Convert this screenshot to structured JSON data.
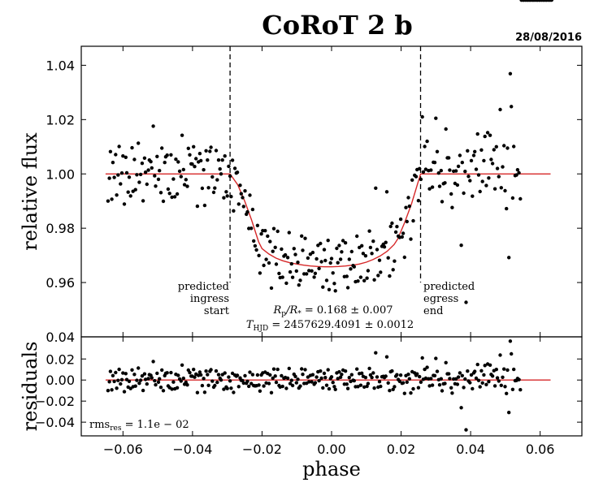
{
  "chart_data": {
    "type": "scatter",
    "title": "CoRoT 2 b",
    "date": "28/08/2016",
    "xlabel": "phase",
    "xlim": [
      -0.072,
      0.072
    ],
    "x_ticks": [
      -0.06,
      -0.04,
      -0.02,
      0.0,
      0.02,
      0.04,
      0.06
    ],
    "x_tick_labels": [
      "−0.06",
      "−0.04",
      "−0.02",
      "0.00",
      "0.02",
      "0.04",
      "0.06"
    ],
    "main_panel": {
      "ylabel": "relative flux",
      "ylim": [
        0.94,
        1.047
      ],
      "y_ticks": [
        0.96,
        0.98,
        1.0,
        1.02,
        1.04
      ],
      "y_tick_labels": [
        "0.96",
        "0.98",
        "1.00",
        "1.02",
        "1.04"
      ],
      "bottom_label": "0.04",
      "ingress_phase": -0.0292,
      "egress_phase": 0.0256,
      "ingress_label": [
        "predicted",
        "ingress",
        "start"
      ],
      "egress_label": [
        "predicted",
        "egress",
        "end"
      ],
      "model": {
        "name": "transit model",
        "color": "#d62728",
        "baseline": 1.0,
        "depth_center": 0.9658,
        "x": [
          -0.065,
          -0.0292,
          -0.027,
          -0.025,
          -0.023,
          -0.021,
          -0.02,
          -0.018,
          -0.016,
          -0.014,
          -0.012,
          -0.01,
          -0.008,
          -0.006,
          -0.004,
          -0.002,
          0.0,
          0.002,
          0.004,
          0.006,
          0.008,
          0.01,
          0.012,
          0.014,
          0.016,
          0.018,
          0.019,
          0.021,
          0.023,
          0.0256,
          0.063
        ],
        "y": [
          1.0,
          1.0,
          0.996,
          0.99,
          0.983,
          0.975,
          0.9725,
          0.9705,
          0.969,
          0.968,
          0.9673,
          0.9668,
          0.9664,
          0.9661,
          0.9659,
          0.9658,
          0.9658,
          0.9659,
          0.9661,
          0.9664,
          0.9668,
          0.9675,
          0.9685,
          0.9698,
          0.9715,
          0.974,
          0.976,
          0.982,
          0.989,
          1.0,
          1.0
        ]
      },
      "points": {
        "name": "observed flux",
        "x": [
          -0.0643,
          -0.0639,
          -0.0636,
          -0.0632,
          -0.0629,
          -0.0625,
          -0.0621,
          -0.0618,
          -0.0614,
          -0.0611,
          -0.0607,
          -0.0603,
          -0.06,
          -0.0596,
          -0.0592,
          -0.0589,
          -0.0585,
          -0.0582,
          -0.0578,
          -0.0574,
          -0.0571,
          -0.0567,
          -0.0564,
          -0.056,
          -0.0556,
          -0.0553,
          -0.0549,
          -0.0545,
          -0.0542,
          -0.0538,
          -0.0535,
          -0.0531,
          -0.0527,
          -0.0524,
          -0.052,
          -0.0517,
          -0.0513,
          -0.0509,
          -0.0506,
          -0.0502,
          -0.0498,
          -0.0495,
          -0.0491,
          -0.0488,
          -0.0484,
          -0.048,
          -0.0477,
          -0.0473,
          -0.047,
          -0.0466,
          -0.0462,
          -0.0459,
          -0.0455,
          -0.0451,
          -0.0448,
          -0.0444,
          -0.0441,
          -0.0437,
          -0.0433,
          -0.043,
          -0.0426,
          -0.0423,
          -0.0419,
          -0.0415,
          -0.0412,
          -0.0408,
          -0.0404,
          -0.0401,
          -0.0397,
          -0.0394,
          -0.039,
          -0.0386,
          -0.0383,
          -0.0379,
          -0.0376,
          -0.0372,
          -0.0368,
          -0.0365,
          -0.0361,
          -0.0357,
          -0.0354,
          -0.035,
          -0.0347,
          -0.0343,
          -0.0339,
          -0.0336,
          -0.0332,
          -0.0329,
          -0.0325,
          -0.0321,
          -0.0318,
          -0.0314,
          -0.031,
          -0.0307,
          -0.0303,
          -0.03,
          -0.0296,
          -0.0292,
          -0.0289,
          -0.0285,
          -0.0282,
          -0.0278,
          -0.0274,
          -0.0271,
          -0.0267,
          -0.0263,
          -0.026,
          -0.0256,
          -0.0253,
          -0.0249,
          -0.0245,
          -0.0242,
          -0.0238,
          -0.0235,
          -0.0231,
          -0.0227,
          -0.0224,
          -0.022,
          -0.0216,
          -0.0213,
          -0.0209,
          -0.0206,
          -0.0202,
          -0.0198,
          -0.0195,
          -0.0191,
          -0.0188,
          -0.0184,
          -0.018,
          -0.0177,
          -0.0173,
          -0.0169,
          -0.0166,
          -0.0162,
          -0.0159,
          -0.0155,
          -0.0151,
          -0.0148,
          -0.0144,
          -0.0141,
          -0.0137,
          -0.0133,
          -0.013,
          -0.0126,
          -0.0122,
          -0.0119,
          -0.0115,
          -0.0112,
          -0.0108,
          -0.0104,
          -0.0101,
          -0.0097,
          -0.0094,
          -0.009,
          -0.0086,
          -0.0083,
          -0.0079,
          -0.0076,
          -0.0072,
          -0.0068,
          -0.0065,
          -0.0061,
          -0.0057,
          -0.0054,
          -0.005,
          -0.0047,
          -0.0043,
          -0.0039,
          -0.0036,
          -0.0032,
          -0.0029,
          -0.0025,
          -0.0021,
          -0.0018,
          -0.0014,
          -0.001,
          -0.0007,
          -0.0003,
          0.0,
          0.0004,
          0.0008,
          0.0011,
          0.0015,
          0.0018,
          0.0022,
          0.0026,
          0.0029,
          0.0033,
          0.0037,
          0.004,
          0.0044,
          0.0047,
          0.0051,
          0.0055,
          0.0058,
          0.0062,
          0.0065,
          0.0069,
          0.0073,
          0.0076,
          0.008,
          0.0084,
          0.0087,
          0.0091,
          0.0094,
          0.0098,
          0.0102,
          0.0105,
          0.0109,
          0.0112,
          0.0116,
          0.012,
          0.0123,
          0.0127,
          0.0131,
          0.0134,
          0.0138,
          0.0141,
          0.0145,
          0.0149,
          0.0152,
          0.0156,
          0.0159,
          0.0163,
          0.0167,
          0.017,
          0.0174,
          0.0177,
          0.0181,
          0.0185,
          0.0188,
          0.0192,
          0.0196,
          0.0199,
          0.0203,
          0.0206,
          0.021,
          0.0214,
          0.0217,
          0.0221,
          0.0224,
          0.0228,
          0.0232,
          0.0235,
          0.0239,
          0.0243,
          0.0246,
          0.025,
          0.0253,
          0.0257,
          0.0261,
          0.0264,
          0.0268,
          0.0271,
          0.0275,
          0.0279,
          0.0282,
          0.0286,
          0.029,
          0.0293,
          0.0297,
          0.03,
          0.0304,
          0.0308,
          0.0311,
          0.0315,
          0.0318,
          0.0322,
          0.0326,
          0.0329,
          0.0333,
          0.0337,
          0.034,
          0.0344,
          0.0347,
          0.0351,
          0.0355,
          0.0358,
          0.0362,
          0.0365,
          0.0369,
          0.0373,
          0.0376,
          0.038,
          0.0384,
          0.0387,
          0.0391,
          0.0394,
          0.0398,
          0.0402,
          0.0405,
          0.0409,
          0.0412,
          0.0416,
          0.042,
          0.0423,
          0.0427,
          0.0431,
          0.0434,
          0.0438,
          0.0441,
          0.0445,
          0.0449,
          0.0452,
          0.0456,
          0.0459,
          0.0463,
          0.0467,
          0.047,
          0.0474,
          0.0477,
          0.0481,
          0.0485,
          0.0488,
          0.0492,
          0.0496,
          0.0499,
          0.0503,
          0.0506,
          0.051,
          0.0514,
          0.0517,
          0.0521,
          0.0524,
          0.0528,
          0.0532,
          0.0535,
          0.0539,
          0.0543,
          0.0546,
          0.055,
          0.0553,
          0.0557,
          0.0561,
          0.0564,
          0.0568,
          0.0571,
          0.0575,
          0.0579,
          0.0582,
          0.0586,
          0.059,
          0.0593,
          0.0597,
          0.06,
          0.0604,
          0.0608,
          0.0611,
          0.0615,
          0.0618,
          0.0622,
          0.0626,
          0.0629,
          0.0633
        ],
        "residuals": [
          -0.01,
          -0.0016,
          0.0082,
          -0.0093,
          0.0042,
          -0.0013,
          0.0071,
          -0.0078,
          -0.0004,
          0.0101,
          -0.0037,
          0.0003,
          0.0066,
          -0.0111,
          0.0061,
          0.0004,
          -0.0067,
          -0.0012,
          -0.0081,
          0.0096,
          -0.0064,
          0.0053,
          -0.0058,
          -0.0003,
          0.0113,
          -0.0031,
          -0.0002,
          0.0039,
          -0.0099,
          0.0058,
          0.0006,
          -0.0038,
          0.0014,
          0.0051,
          0.0045,
          0.0022,
          0.0176,
          -0.0007,
          -0.0045,
          0.0064,
          -0.002,
          0.0012,
          -0.0069,
          0.0095,
          -0.0101,
          0.0042,
          0.0063,
          0.0069,
          -0.0056,
          -0.0072,
          0.007,
          -0.0086,
          -0.0019,
          -0.0084,
          0.0054,
          -0.0074,
          0.0044,
          0.001,
          -0.001,
          0.0142,
          0.0016,
          -0.004,
          -0.0021,
          -0.0046,
          0.0094,
          0.007,
          0.0037,
          0.0036,
          0.01,
          0.0027,
          0.0056,
          -0.0119,
          0.0044,
          0.0075,
          0.0049,
          -0.0053,
          0.0015,
          -0.0116,
          0.0085,
          0.0051,
          -0.0051,
          0.0083,
          0.0098,
          -0.0011,
          -0.0068,
          -0.0052,
          0.0086,
          -0.0022,
          0.0051,
          0.0018,
          0.0,
          0.0051,
          -0.0088,
          0.0066,
          -0.0066,
          -0.0081,
          0.0028,
          -0.0008,
          -0.0078,
          0.0063,
          -0.0118,
          0.0046,
          0.0036,
          0.0044,
          -0.0062,
          0.0019,
          -0.0003,
          -0.0005,
          -0.0029,
          0.0041,
          -0.0031,
          -0.0012,
          -0.0059,
          0.0074,
          -0.0034,
          0.0051,
          -0.0053,
          -0.0055,
          -0.0054,
          0.0048,
          -0.0048,
          -0.0105,
          0.0049,
          0.0068,
          -0.0057,
          0.0075,
          -0.0028,
          0.0062,
          -0.0033,
          0.0048,
          -0.012,
          0.0018,
          0.0104,
          0.0038,
          -0.0022,
          0.0101,
          -0.0052,
          -0.0066,
          0.0041,
          -0.0061,
          0.0018,
          0.0024,
          -0.0079,
          0.0017,
          0.011,
          -0.0034,
          -0.0003,
          -0.0052,
          0.0055,
          0.0034,
          -0.0026,
          0.0007,
          -0.0076,
          -0.0058,
          0.0106,
          0.0054,
          -0.0032,
          0.0099,
          -0.0031,
          0.0028,
          -0.0018,
          0.0043,
          -0.0018,
          0.005,
          -0.004,
          -0.0026,
          0.0028,
          0.0078,
          -0.0007,
          0.0085,
          0.0018,
          -0.0075,
          0.0063,
          0.0023,
          -0.005,
          0.0097,
          -0.0084,
          0.0014,
          0.003,
          -0.0023,
          -0.0062,
          -0.0089,
          0.0067,
          0.0014,
          0.0077,
          0.0026,
          0.0053,
          0.0094,
          -0.0039,
          0.0085,
          -0.0039,
          -0.0081,
          0.0023,
          -0.0013,
          0.005,
          -0.0002,
          -0.0007,
          -0.0063,
          0.0104,
          -0.0062,
          0.0061,
          -0.005,
          0.0065,
          0.0035,
          -0.0066,
          0.0024,
          -0.006,
          -0.0034,
          0.011,
          0.0048,
          0.0024,
          0.0067,
          -0.0077,
          0.0258,
          0.0029,
          -0.0068,
          -0.0015,
          -0.0061,
          0.0031,
          0.0035,
          0.0023,
          0.0036,
          0.022,
          -0.0028,
          -0.01,
          0.0079,
          0.0086,
          -0.0089,
          -0.0063,
          0.0036,
          0.005,
          0.0005,
          -0.0012,
          0.0046,
          -0.0031,
          -0.0027,
          -0.0127,
          0.0042,
          -0.002,
          0.0054,
          0.0012,
          -0.0123,
          0.0079,
          -0.0084,
          0.0067,
          0.0045,
          0.0058,
          -0.0073,
          0.0032,
          -0.002,
          0.021,
          0.0007,
          0.0101,
          0.0017,
          0.012,
          0.0012,
          -0.0055,
          0.0014,
          -0.0049,
          0.0043,
          0.0042,
          0.0205,
          0.0082,
          0.0003,
          -0.0046,
          0.0012,
          -0.0102,
          -0.0036,
          -0.0033,
          0.0165,
          0.0059,
          0.0059,
          0.0014,
          -0.0074,
          -0.0124,
          0.001,
          -0.0035,
          0.0011,
          -0.0041,
          0.0028,
          0.0068,
          -0.0263,
          0.0042,
          -0.0071,
          0.0009,
          -0.0473,
          0.0085,
          -0.0009,
          -0.0025,
          0.0049,
          -0.0082,
          0.0068,
          0.0082,
          0.0017,
          0.0147,
          -0.0004,
          -0.0065,
          0.0088,
          -0.0028,
          0.0049,
          0.0138,
          -0.0043,
          0.0152,
          -0.0015,
          0.0142,
          0.0053,
          0.0038,
          0.0089,
          -0.0055,
          0.01,
          0.002,
          -0.001,
          0.0237,
          -0.0051,
          0.0026,
          0.0104,
          -0.0062,
          -0.0128,
          0.0095,
          -0.0308,
          0.0369,
          0.0248,
          -0.0089,
          0.0101,
          -0.0006,
          -0.0004,
          0.0015,
          0.0004,
          -0.0092
        ]
      },
      "annotation": {
        "rp_prefix": "R",
        "rp_sub": "p",
        "rp_mid": "/R",
        "rp_star": "*",
        "rp_value": " = 0.168 ± 0.007",
        "t_prefix": "T",
        "t_sub": "HJD",
        "t_value": " = 2457629.4091 ± 0.0012"
      }
    },
    "residual_panel": {
      "ylabel": "residuals",
      "ylim": [
        -0.053,
        0.041
      ],
      "y_ticks": [
        -0.04,
        -0.02,
        0.0,
        0.02
      ],
      "y_tick_labels": [
        "−0.04",
        "−0.02",
        "0.00",
        "0.02"
      ],
      "rms_prefix": "rms",
      "rms_sub": "res",
      "rms_value": " = 1.1e − 02"
    }
  }
}
